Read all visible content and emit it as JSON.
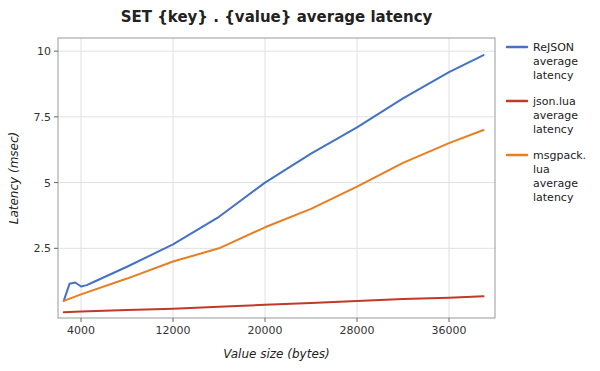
{
  "chart_data": {
    "type": "line",
    "title": "SET {key} . {value} average latency",
    "x_label": "Value size (bytes)",
    "y_label": "Latency (msec)",
    "xlim": [
      2000,
      40000
    ],
    "ylim": [
      -0.15,
      10.5
    ],
    "xticks": [
      4000,
      12000,
      20000,
      28000,
      36000
    ],
    "yticks": [
      2.5,
      5.0,
      7.5,
      10.0
    ],
    "grid": true,
    "legend": "right",
    "series": [
      {
        "name": "ReJSON\naverage\nlatency",
        "color": "#4472C4",
        "x": [
          2500,
          3000,
          3500,
          4000,
          4500,
          5000,
          8000,
          12000,
          16000,
          20000,
          24000,
          28000,
          32000,
          36000,
          39000
        ],
        "values": [
          0.5,
          1.15,
          1.2,
          1.05,
          1.1,
          1.2,
          1.8,
          2.65,
          3.7,
          5.0,
          6.1,
          7.1,
          8.2,
          9.2,
          9.85
        ]
      },
      {
        "name": "json.lua\naverage\nlatency",
        "color": "#C0392B",
        "x": [
          2500,
          4000,
          8000,
          12000,
          16000,
          20000,
          24000,
          28000,
          32000,
          36000,
          39000
        ],
        "values": [
          0.07,
          0.1,
          0.15,
          0.2,
          0.28,
          0.35,
          0.42,
          0.5,
          0.57,
          0.62,
          0.68
        ]
      },
      {
        "name": "msgpack.\nlua\naverage\nlatency",
        "color": "#E67E22",
        "x": [
          2500,
          4000,
          8000,
          12000,
          16000,
          20000,
          24000,
          28000,
          32000,
          36000,
          39000
        ],
        "values": [
          0.5,
          0.75,
          1.35,
          2.0,
          2.5,
          3.3,
          4.0,
          4.85,
          5.75,
          6.5,
          7.0
        ]
      }
    ]
  }
}
